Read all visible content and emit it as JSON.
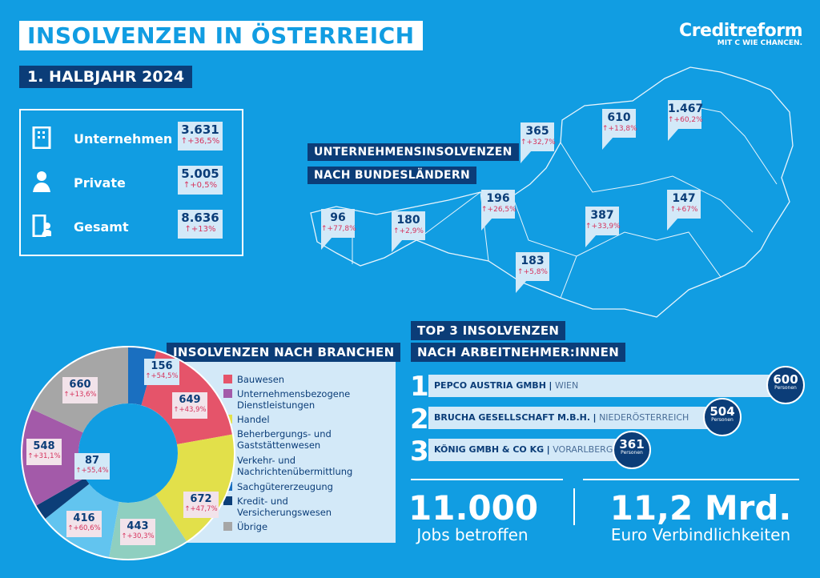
{
  "header": {
    "title": "INSOLVENZEN IN ÖSTERREICH",
    "subtitle": "1. HALBJAHR 2024"
  },
  "logo": {
    "name": "Creditreform",
    "tagline": "MIT C WIE CHANCEN."
  },
  "summary": [
    {
      "label": "Unternehmen",
      "value": "3.631",
      "change": "+36,5%",
      "icon": "building-icon"
    },
    {
      "label": "Private",
      "value": "5.005",
      "change": "+0,5%",
      "icon": "person-icon"
    },
    {
      "label": "Gesamt",
      "value": "8.636",
      "change": "+13%",
      "icon": "building-person-icon"
    }
  ],
  "map": {
    "title_line1": "UNTERNEHMENSINSOLVENZEN",
    "title_line2": "NACH BUNDESLÄNDERN",
    "regions": [
      {
        "value": "96",
        "change": "+77,8%"
      },
      {
        "value": "180",
        "change": "+2,9%"
      },
      {
        "value": "196",
        "change": "+26,5%"
      },
      {
        "value": "365",
        "change": "+32,7%"
      },
      {
        "value": "610",
        "change": "+13,8%"
      },
      {
        "value": "1.467",
        "change": "+60,2%"
      },
      {
        "value": "147",
        "change": "+67%"
      },
      {
        "value": "387",
        "change": "+33,9%"
      },
      {
        "value": "183",
        "change": "+5,8%"
      }
    ]
  },
  "chart_data": {
    "type": "pie",
    "title": "INSOLVENZEN NACH BRANCHEN",
    "donut": true,
    "categories": [
      "Sachgütererzeugung",
      "Bauwesen",
      "Handel",
      "Beherbergungs- und Gaststättenwesen",
      "Verkehr- und Nachrichtenübermittlung",
      "Kredit- und Versicherungswesen",
      "Unternehmensbezogene Dienstleistungen",
      "Übrige"
    ],
    "values": [
      156,
      649,
      672,
      443,
      416,
      87,
      548,
      660
    ],
    "changes": [
      "+54,5%",
      "+43,9%",
      "+47,7%",
      "+30,3%",
      "+60,6%",
      "+55,4%",
      "+31,1%",
      "+13,6%"
    ],
    "colors": [
      "#1a6fc0",
      "#e5546a",
      "#e2e04a",
      "#8fcfc0",
      "#62c4ef",
      "#0c3e78",
      "#a35aa9",
      "#a6a6a6"
    ],
    "legend": [
      {
        "line1": "Bauwesen",
        "line2": "",
        "color": "#e5546a"
      },
      {
        "line1": "Unternehmensbezogene",
        "line2": "Dienstleistungen",
        "color": "#a35aa9"
      },
      {
        "line1": "Handel",
        "line2": "",
        "color": "#e2e04a"
      },
      {
        "line1": "Beherbergungs- und",
        "line2": "Gaststättenwesen",
        "color": "#8fcfc0"
      },
      {
        "line1": "Verkehr- und",
        "line2": "Nachrichtenübermittlung",
        "color": "#62c4ef"
      },
      {
        "line1": "Sachgütererzeugung",
        "line2": "",
        "color": "#1a6fc0"
      },
      {
        "line1": "Kredit- und",
        "line2": "Versicherungswesen",
        "color": "#0c3e78"
      },
      {
        "line1": "Übrige",
        "line2": "",
        "color": "#a6a6a6"
      }
    ]
  },
  "top3": {
    "title_line1": "TOP 3 INSOLVENZEN",
    "title_line2": "NACH ARBEITNEHMER:INNEN",
    "unit": "Personen",
    "items": [
      {
        "rank": "1",
        "company": "PEPCO AUSTRIA GMBH",
        "region": "WIEN",
        "employees": "600"
      },
      {
        "rank": "2",
        "company": "BRUCHA GESELLSCHAFT M.B.H.",
        "region": "NIEDERÖSTERREICH",
        "employees": "504"
      },
      {
        "rank": "3",
        "company": "KÖNIG GMBH & CO KG",
        "region": "VORARLBERG",
        "employees": "361"
      }
    ]
  },
  "stats": [
    {
      "value": "11.000",
      "label": "Jobs betroffen"
    },
    {
      "value": "11,2 Mrd.",
      "label": "Euro Verbindlichkeiten"
    }
  ],
  "colors": {
    "background": "#119de2",
    "navy": "#0b3d78",
    "light": "#d3e9f8",
    "increase": "#d6335d"
  }
}
